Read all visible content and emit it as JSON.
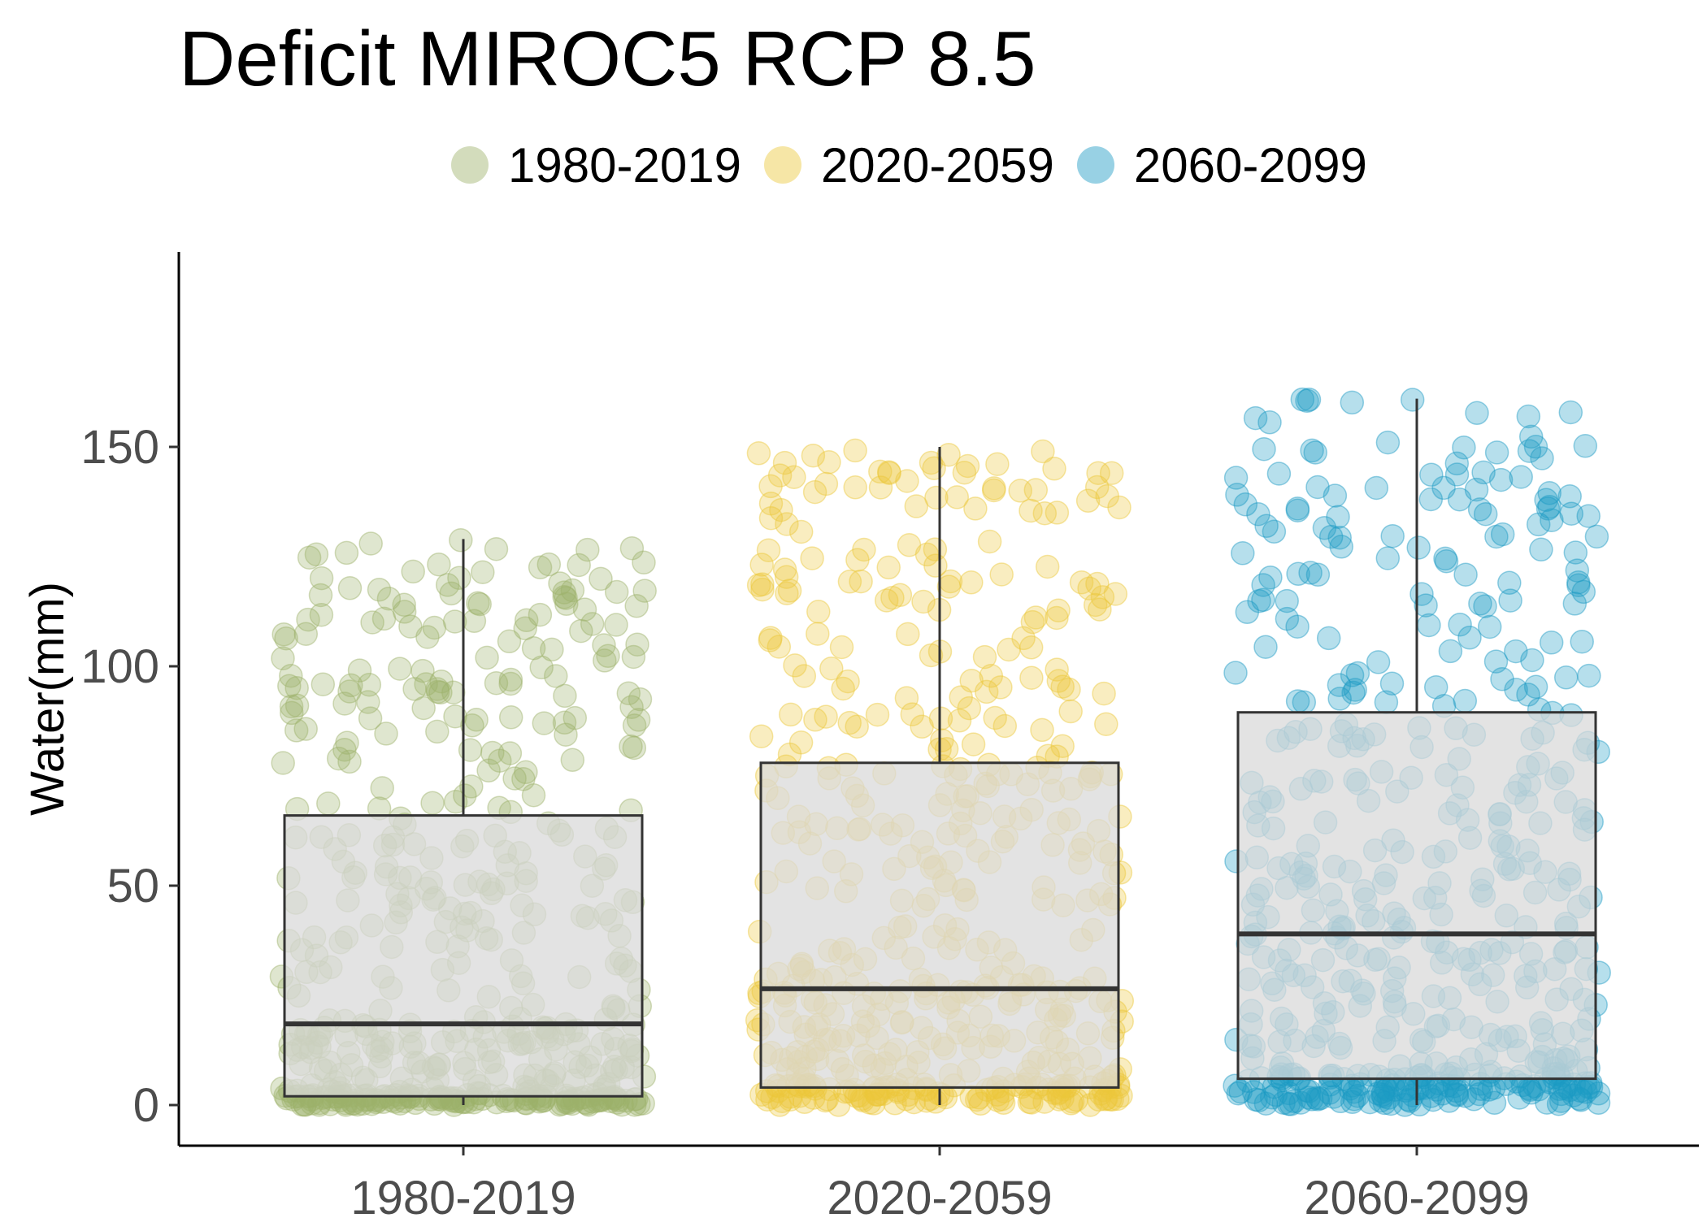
{
  "chart_data": {
    "type": "box",
    "title": "Deficit MIROC5 RCP 8.5",
    "xlabel": "",
    "ylabel": "Water(mm)",
    "ylim": [
      -12,
      195
    ],
    "yticks": [
      0,
      50,
      100,
      150
    ],
    "categories": [
      "1980-2019",
      "2020-2059",
      "2060-2099"
    ],
    "legend": {
      "position": "top",
      "entries": [
        "1980-2019",
        "2020-2059",
        "2060-2099"
      ]
    },
    "grid": false,
    "series": [
      {
        "name": "1980-2019",
        "color": "#9db26b",
        "whisker_low": 0,
        "q1": 2,
        "median": 18.5,
        "q3": 66,
        "whisker_high": 129
      },
      {
        "name": "2020-2059",
        "color": "#ebc83a",
        "whisker_low": 0,
        "q1": 4,
        "median": 26.5,
        "q3": 78,
        "whisker_high": 150
      },
      {
        "name": "2060-2099",
        "color": "#1b9ac4",
        "whisker_low": 0,
        "q1": 6,
        "median": 39,
        "q3": 89.5,
        "whisker_high": 161
      }
    ]
  }
}
